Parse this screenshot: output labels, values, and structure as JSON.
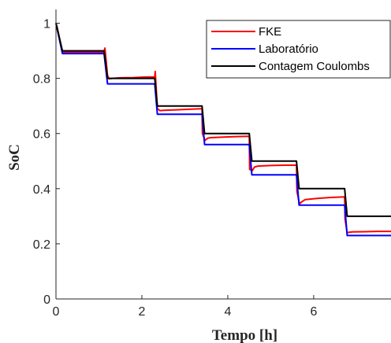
{
  "chart_data": {
    "type": "line",
    "title": "",
    "xlabel": "Tempo [h]",
    "ylabel": "SoC",
    "xlim": [
      0,
      7.8
    ],
    "ylim": [
      0,
      1.05
    ],
    "xticks": [
      0,
      2,
      4,
      6
    ],
    "yticks": [
      0,
      0.2,
      0.4,
      0.6,
      0.8,
      1
    ],
    "ytick_labels": [
      "0",
      "0.2",
      "0.4",
      "0.6",
      "0.8",
      "1"
    ],
    "grid": false,
    "legend_position": "top-right",
    "series": [
      {
        "name": "FKE",
        "color": "#ff0000",
        "x": [
          0,
          0.02,
          0.15,
          1.12,
          1.14,
          1.2,
          1.24,
          1.3,
          1.5,
          1.8,
          2.1,
          2.3,
          2.31,
          2.36,
          2.42,
          2.5,
          2.8,
          3.1,
          3.4,
          3.41,
          3.47,
          3.53,
          3.6,
          3.9,
          4.2,
          4.5,
          4.51,
          4.57,
          4.62,
          4.7,
          5.0,
          5.3,
          5.6,
          5.61,
          5.67,
          5.72,
          5.8,
          6.1,
          6.4,
          6.72,
          6.73,
          6.78,
          6.83,
          6.9,
          7.2,
          7.5,
          7.8
        ],
        "y": [
          1.0,
          0.99,
          0.895,
          0.895,
          0.91,
          0.81,
          0.798,
          0.8,
          0.802,
          0.803,
          0.805,
          0.805,
          0.825,
          0.69,
          0.683,
          0.684,
          0.686,
          0.688,
          0.69,
          0.6,
          0.575,
          0.583,
          0.585,
          0.587,
          0.589,
          0.59,
          0.47,
          0.465,
          0.478,
          0.482,
          0.484,
          0.485,
          0.485,
          0.39,
          0.345,
          0.352,
          0.36,
          0.365,
          0.368,
          0.37,
          0.29,
          0.24,
          0.242,
          0.243,
          0.244,
          0.245,
          0.245
        ]
      },
      {
        "name": "Laboratório",
        "color": "#0000ff",
        "x": [
          0,
          0.15,
          1.12,
          1.2,
          2.3,
          2.36,
          3.4,
          3.46,
          4.5,
          4.56,
          5.6,
          5.66,
          6.72,
          6.78,
          7.8
        ],
        "y": [
          1.0,
          0.89,
          0.89,
          0.78,
          0.78,
          0.67,
          0.67,
          0.56,
          0.56,
          0.45,
          0.45,
          0.34,
          0.34,
          0.23,
          0.23
        ]
      },
      {
        "name": "Contagem Coulombs",
        "color": "#000000",
        "x": [
          0,
          0.15,
          1.12,
          1.2,
          2.3,
          2.36,
          3.4,
          3.46,
          4.5,
          4.56,
          5.6,
          5.66,
          6.72,
          6.78,
          7.8
        ],
        "y": [
          1.0,
          0.9,
          0.9,
          0.8,
          0.8,
          0.7,
          0.7,
          0.6,
          0.6,
          0.5,
          0.5,
          0.4,
          0.4,
          0.3,
          0.3
        ]
      }
    ]
  }
}
